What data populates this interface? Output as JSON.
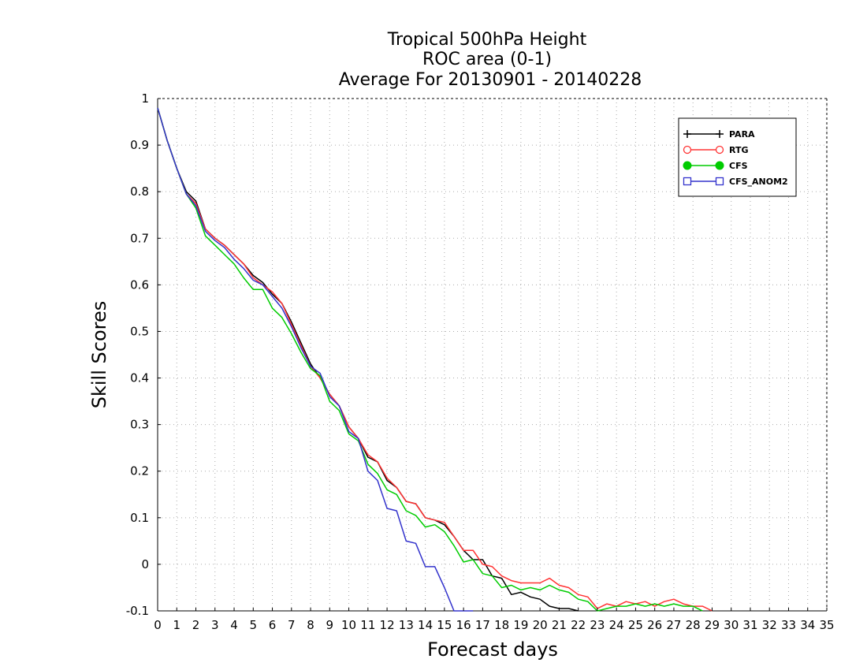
{
  "chart_data": {
    "type": "line",
    "title": [
      "Tropical 500hPa Height",
      "ROC area (0-1)",
      "Average For 20130901 - 20140228"
    ],
    "xlabel": "Forecast days",
    "ylabel": "Skill Scores",
    "xlim": [
      0,
      35
    ],
    "ylim": [
      -0.1,
      1
    ],
    "x_ticks": [
      "0",
      "1",
      "2",
      "3",
      "4",
      "5",
      "6",
      "7",
      "8",
      "9",
      "10",
      "11",
      "12",
      "13",
      "14",
      "15",
      "16",
      "17",
      "18",
      "19",
      "20",
      "21",
      "22",
      "23",
      "24",
      "25",
      "26",
      "27",
      "28",
      "29",
      "30",
      "31",
      "32",
      "33",
      "34",
      "35"
    ],
    "y_ticks": [
      "-0.1",
      "0",
      "0.1",
      "0.2",
      "0.3",
      "0.4",
      "0.5",
      "0.6",
      "0.7",
      "0.8",
      "0.9",
      "1"
    ],
    "grid": true,
    "legend_position": "top-right",
    "series": [
      {
        "name": "PARA",
        "color": "#000000",
        "marker": "plus",
        "x": [
          0,
          0.5,
          1,
          1.5,
          2,
          2.5,
          3,
          3.5,
          4,
          4.5,
          5,
          5.5,
          6,
          6.5,
          7,
          7.5,
          8,
          8.5,
          9,
          9.5,
          10,
          10.5,
          11,
          11.5,
          12,
          12.5,
          13,
          13.5,
          14,
          14.5,
          15,
          15.5,
          16,
          16.5,
          17,
          17.5,
          18,
          18.5,
          19,
          19.5,
          20,
          20.5,
          21,
          21.5,
          22
        ],
        "y": [
          0.98,
          0.91,
          0.85,
          0.8,
          0.78,
          0.72,
          0.7,
          0.685,
          0.665,
          0.645,
          0.62,
          0.605,
          0.58,
          0.56,
          0.52,
          0.475,
          0.43,
          0.4,
          0.365,
          0.34,
          0.295,
          0.27,
          0.23,
          0.22,
          0.18,
          0.165,
          0.135,
          0.13,
          0.1,
          0.095,
          0.085,
          0.06,
          0.03,
          0.01,
          0.01,
          -0.025,
          -0.03,
          -0.065,
          -0.06,
          -0.07,
          -0.075,
          -0.09,
          -0.095,
          -0.095,
          -0.1
        ]
      },
      {
        "name": "RTG",
        "color": "#ff3333",
        "marker": "circle",
        "x": [
          0,
          0.5,
          1,
          1.5,
          2,
          2.5,
          3,
          3.5,
          4,
          4.5,
          5,
          5.5,
          6,
          6.5,
          7,
          7.5,
          8,
          8.5,
          9,
          9.5,
          10,
          10.5,
          11,
          11.5,
          12,
          12.5,
          13,
          13.5,
          14,
          14.5,
          15,
          15.5,
          16,
          16.5,
          17,
          17.5,
          18,
          18.5,
          19,
          19.5,
          20,
          20.5,
          21,
          21.5,
          22,
          22.5,
          23,
          23.5,
          24,
          24.5,
          25,
          25.5,
          26,
          26.5,
          27,
          27.5,
          28,
          28.5,
          29
        ],
        "y": [
          0.98,
          0.91,
          0.85,
          0.795,
          0.775,
          0.72,
          0.7,
          0.685,
          0.665,
          0.645,
          0.615,
          0.6,
          0.585,
          0.56,
          0.515,
          0.47,
          0.425,
          0.4,
          0.365,
          0.34,
          0.295,
          0.27,
          0.235,
          0.22,
          0.185,
          0.165,
          0.135,
          0.13,
          0.1,
          0.095,
          0.09,
          0.06,
          0.03,
          0.03,
          0.0,
          -0.005,
          -0.025,
          -0.035,
          -0.04,
          -0.04,
          -0.04,
          -0.03,
          -0.045,
          -0.05,
          -0.065,
          -0.07,
          -0.095,
          -0.085,
          -0.09,
          -0.08,
          -0.085,
          -0.08,
          -0.09,
          -0.08,
          -0.075,
          -0.085,
          -0.09,
          -0.09,
          -0.1
        ]
      },
      {
        "name": "CFS",
        "color": "#00cc00",
        "marker": "filled-circle",
        "x": [
          0,
          0.5,
          1,
          1.5,
          2,
          2.5,
          3,
          3.5,
          4,
          4.5,
          5,
          5.5,
          6,
          6.5,
          7,
          7.5,
          8,
          8.5,
          9,
          9.5,
          10,
          10.5,
          11,
          11.5,
          12,
          12.5,
          13,
          13.5,
          14,
          14.5,
          15,
          15.5,
          16,
          16.5,
          17,
          17.5,
          18,
          18.5,
          19,
          19.5,
          20,
          20.5,
          21,
          21.5,
          22,
          22.5,
          23,
          23.5,
          24,
          24.5,
          25,
          25.5,
          26,
          26.5,
          27,
          27.5,
          28,
          28.5
        ],
        "y": [
          0.98,
          0.91,
          0.85,
          0.795,
          0.765,
          0.705,
          0.685,
          0.665,
          0.645,
          0.615,
          0.59,
          0.59,
          0.55,
          0.53,
          0.495,
          0.455,
          0.42,
          0.405,
          0.35,
          0.33,
          0.28,
          0.265,
          0.215,
          0.195,
          0.16,
          0.15,
          0.115,
          0.105,
          0.08,
          0.085,
          0.07,
          0.04,
          0.005,
          0.01,
          -0.02,
          -0.025,
          -0.05,
          -0.045,
          -0.055,
          -0.05,
          -0.055,
          -0.045,
          -0.055,
          -0.06,
          -0.075,
          -0.08,
          -0.1,
          -0.095,
          -0.09,
          -0.09,
          -0.085,
          -0.09,
          -0.085,
          -0.09,
          -0.085,
          -0.09,
          -0.09,
          -0.1
        ]
      },
      {
        "name": "CFS_ANOM2",
        "color": "#3333cc",
        "marker": "square",
        "x": [
          0,
          0.5,
          1,
          1.5,
          2,
          2.5,
          3,
          3.5,
          4,
          4.5,
          5,
          5.5,
          6,
          6.5,
          7,
          7.5,
          8,
          8.5,
          9,
          9.5,
          10,
          10.5,
          11,
          11.5,
          12,
          12.5,
          13,
          13.5,
          14,
          14.5,
          15,
          15.5,
          16,
          16.5
        ],
        "y": [
          0.98,
          0.91,
          0.85,
          0.795,
          0.77,
          0.715,
          0.695,
          0.68,
          0.655,
          0.635,
          0.61,
          0.6,
          0.575,
          0.55,
          0.51,
          0.465,
          0.425,
          0.41,
          0.36,
          0.34,
          0.285,
          0.27,
          0.2,
          0.18,
          0.12,
          0.115,
          0.05,
          0.045,
          -0.005,
          -0.005,
          -0.05,
          -0.1,
          -0.1,
          -0.1
        ]
      }
    ]
  }
}
